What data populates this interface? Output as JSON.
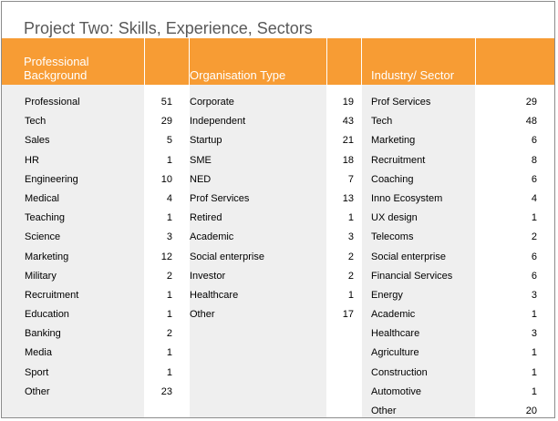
{
  "title": "Project Two: Skills, Experience, Sectors",
  "headers": {
    "professional": "Professional Background",
    "organisation": "Organisation Type",
    "industry": "Industry/ Sector"
  },
  "professional": [
    {
      "label": "Professional",
      "value": "51"
    },
    {
      "label": "Tech",
      "value": "29"
    },
    {
      "label": "Sales",
      "value": "5"
    },
    {
      "label": "HR",
      "value": "1"
    },
    {
      "label": "Engineering",
      "value": "10"
    },
    {
      "label": "Medical",
      "value": "4"
    },
    {
      "label": "Teaching",
      "value": "1"
    },
    {
      "label": "Science",
      "value": "3"
    },
    {
      "label": "Marketing",
      "value": "12"
    },
    {
      "label": "Military",
      "value": "2"
    },
    {
      "label": "Recruitment",
      "value": "1"
    },
    {
      "label": "Education",
      "value": "1"
    },
    {
      "label": "Banking",
      "value": "2"
    },
    {
      "label": "Media",
      "value": "1"
    },
    {
      "label": "Sport",
      "value": "1"
    },
    {
      "label": "Other",
      "value": "23"
    }
  ],
  "organisation": [
    {
      "label": "Corporate",
      "value": "19"
    },
    {
      "label": "Independent",
      "value": "43"
    },
    {
      "label": "Startup",
      "value": "21"
    },
    {
      "label": "SME",
      "value": "18"
    },
    {
      "label": "NED",
      "value": "7"
    },
    {
      "label": "Prof Services",
      "value": "13"
    },
    {
      "label": "Retired",
      "value": "1"
    },
    {
      "label": "Academic",
      "value": "3"
    },
    {
      "label": "Social enterprise",
      "value": "2"
    },
    {
      "label": "Investor",
      "value": "2"
    },
    {
      "label": "Healthcare",
      "value": "1"
    },
    {
      "label": "Other",
      "value": "17"
    }
  ],
  "industry": [
    {
      "label": "Prof Services",
      "value": "29"
    },
    {
      "label": "Tech",
      "value": "48"
    },
    {
      "label": "Marketing",
      "value": "6"
    },
    {
      "label": "Recruitment",
      "value": "8"
    },
    {
      "label": "Coaching",
      "value": "6"
    },
    {
      "label": "Inno Ecosystem",
      "value": "4"
    },
    {
      "label": "UX design",
      "value": "1"
    },
    {
      "label": "Telecoms",
      "value": "2"
    },
    {
      "label": "Social enterprise",
      "value": "6"
    },
    {
      "label": "Financial Services",
      "value": "6"
    },
    {
      "label": "Energy",
      "value": "3"
    },
    {
      "label": "Academic",
      "value": "1"
    },
    {
      "label": "Healthcare",
      "value": "3"
    },
    {
      "label": "Agriculture",
      "value": "1"
    },
    {
      "label": "Construction",
      "value": "1"
    },
    {
      "label": "Automotive",
      "value": "1"
    },
    {
      "label": "Other",
      "value": "20"
    }
  ]
}
